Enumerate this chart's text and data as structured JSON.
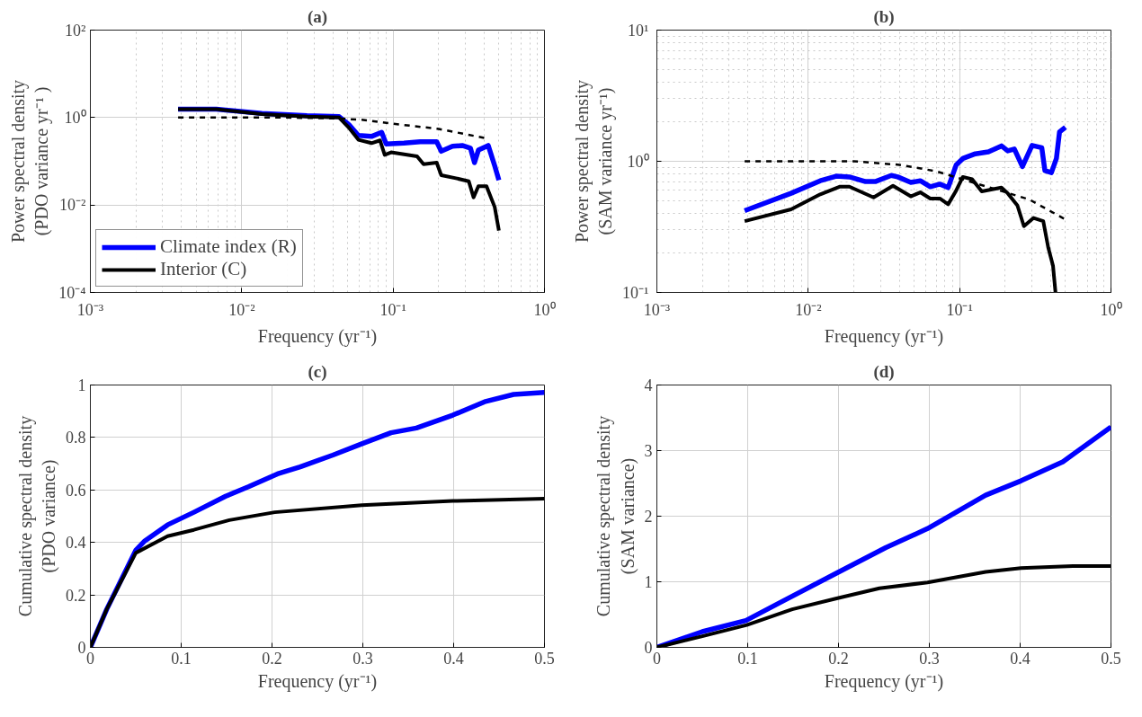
{
  "chart_data": [
    {
      "type": "line",
      "title": "(a)",
      "xlabel": "Frequency (yr⁻¹)",
      "ylabel": "Power spectral density\n(PDO variance yr⁻¹ )",
      "log": "xy",
      "grid": true,
      "legend": "bottom left",
      "xlim": [
        0.001,
        1
      ],
      "ylim": [
        0.0001,
        100
      ],
      "xticks": [
        {
          "value": 0.001,
          "label": "10⁻³"
        },
        {
          "value": 0.01,
          "label": "10⁻²"
        },
        {
          "value": 0.1,
          "label": "10⁻¹"
        },
        {
          "value": 1,
          "label": "10⁰"
        }
      ],
      "yticks": [
        {
          "value": 0.0001,
          "label": "10⁻⁴"
        },
        {
          "value": 0.01,
          "label": "10⁻²"
        },
        {
          "value": 1,
          "label": "10⁰"
        },
        {
          "value": 100,
          "label": "10²"
        }
      ],
      "series": [
        {
          "name": "Climate index (R)",
          "color": "#0000ff",
          "x": [
            0.0038,
            0.0068,
            0.0136,
            0.027,
            0.044,
            0.051,
            0.059,
            0.072,
            0.084,
            0.09,
            0.118,
            0.151,
            0.194,
            0.208,
            0.247,
            0.286,
            0.324,
            0.345,
            0.366,
            0.425,
            0.469,
            0.5
          ],
          "values": [
            1.55,
            1.55,
            1.24,
            1.1,
            1.05,
            0.69,
            0.39,
            0.37,
            0.46,
            0.25,
            0.26,
            0.28,
            0.28,
            0.17,
            0.22,
            0.23,
            0.2,
            0.093,
            0.18,
            0.23,
            0.079,
            0.037
          ]
        },
        {
          "name": "Interior (C)",
          "color": "#000000",
          "x": [
            0.0038,
            0.0068,
            0.0136,
            0.027,
            0.044,
            0.051,
            0.059,
            0.072,
            0.082,
            0.088,
            0.097,
            0.144,
            0.159,
            0.194,
            0.208,
            0.26,
            0.316,
            0.34,
            0.366,
            0.414,
            0.469,
            0.5
          ],
          "values": [
            1.55,
            1.55,
            1.2,
            1.05,
            1.0,
            0.59,
            0.31,
            0.26,
            0.3,
            0.14,
            0.16,
            0.13,
            0.086,
            0.093,
            0.048,
            0.041,
            0.035,
            0.015,
            0.027,
            0.027,
            0.009,
            0.0026
          ]
        },
        {
          "color": "#000000",
          "line_style": "dashed",
          "x": [
            0.0038,
            0.02,
            0.044,
            0.062,
            0.1,
            0.2,
            0.405
          ],
          "values": [
            1.0,
            1.0,
            0.95,
            0.89,
            0.72,
            0.55,
            0.34
          ]
        }
      ]
    },
    {
      "type": "line",
      "title": "(b)",
      "xlabel": "Frequency (yr⁻¹)",
      "ylabel": "Power spectral density\n(SAM variance yr⁻¹)",
      "log": "xy",
      "grid": true,
      "xlim": [
        0.001,
        1
      ],
      "ylim": [
        0.1,
        10
      ],
      "xticks": [
        {
          "value": 0.001,
          "label": "10⁻³"
        },
        {
          "value": 0.01,
          "label": "10⁻²"
        },
        {
          "value": 0.1,
          "label": "10⁻¹"
        },
        {
          "value": 1,
          "label": "10⁰"
        }
      ],
      "yticks": [
        {
          "value": 0.1,
          "label": "10⁻¹"
        },
        {
          "value": 1,
          "label": "10⁰"
        },
        {
          "value": 10,
          "label": "10¹"
        }
      ],
      "series": [
        {
          "color": "#0000ff",
          "x": [
            0.0038,
            0.0077,
            0.012,
            0.0153,
            0.0187,
            0.0239,
            0.0277,
            0.0354,
            0.039,
            0.0476,
            0.055,
            0.064,
            0.074,
            0.084,
            0.095,
            0.105,
            0.127,
            0.155,
            0.189,
            0.208,
            0.23,
            0.26,
            0.301,
            0.349,
            0.366,
            0.404,
            0.436,
            0.457,
            0.5
          ],
          "values": [
            0.42,
            0.57,
            0.71,
            0.77,
            0.76,
            0.7,
            0.7,
            0.78,
            0.76,
            0.69,
            0.71,
            0.64,
            0.67,
            0.63,
            0.94,
            1.05,
            1.14,
            1.18,
            1.31,
            1.2,
            1.24,
            0.91,
            1.32,
            1.27,
            0.85,
            0.82,
            1.05,
            1.67,
            1.82
          ]
        },
        {
          "color": "#000000",
          "x": [
            0.0038,
            0.0077,
            0.012,
            0.0161,
            0.0187,
            0.027,
            0.0363,
            0.0476,
            0.055,
            0.064,
            0.074,
            0.084,
            0.095,
            0.105,
            0.121,
            0.14,
            0.189,
            0.208,
            0.241,
            0.266,
            0.308,
            0.357,
            0.385,
            0.414,
            0.43
          ],
          "values": [
            0.35,
            0.43,
            0.56,
            0.64,
            0.64,
            0.53,
            0.65,
            0.54,
            0.58,
            0.52,
            0.52,
            0.47,
            0.6,
            0.76,
            0.73,
            0.59,
            0.63,
            0.57,
            0.46,
            0.32,
            0.37,
            0.35,
            0.22,
            0.16,
            0.1
          ]
        },
        {
          "color": "#000000",
          "line_style": "dashed",
          "x": [
            0.0038,
            0.02,
            0.04,
            0.07,
            0.29,
            0.5
          ],
          "values": [
            1.0,
            1.0,
            0.94,
            0.84,
            0.51,
            0.36
          ]
        }
      ]
    },
    {
      "type": "line",
      "title": "(c)",
      "xlabel": "Frequency (yr⁻¹)",
      "ylabel": "Cumulative spectral density\n(PDO variance)",
      "grid": true,
      "xlim": [
        0,
        0.5
      ],
      "ylim": [
        0,
        1
      ],
      "xticks": [
        0,
        0.1,
        0.2,
        0.3,
        0.4,
        0.5
      ],
      "yticks": [
        0,
        0.2,
        0.4,
        0.6,
        0.8,
        1
      ],
      "series": [
        {
          "color": "#0000ff",
          "x": [
            0,
            0.018,
            0.05,
            0.06,
            0.085,
            0.114,
            0.149,
            0.174,
            0.206,
            0.231,
            0.267,
            0.299,
            0.331,
            0.359,
            0.399,
            0.434,
            0.466,
            0.5
          ],
          "values": [
            0,
            0.145,
            0.37,
            0.406,
            0.467,
            0.515,
            0.576,
            0.612,
            0.661,
            0.688,
            0.733,
            0.776,
            0.818,
            0.836,
            0.885,
            0.936,
            0.964,
            0.972
          ]
        },
        {
          "color": "#000000",
          "x": [
            0,
            0.018,
            0.05,
            0.085,
            0.114,
            0.153,
            0.203,
            0.299,
            0.399,
            0.5
          ],
          "values": [
            0,
            0.145,
            0.36,
            0.424,
            0.448,
            0.485,
            0.515,
            0.542,
            0.558,
            0.567
          ]
        }
      ]
    },
    {
      "type": "line",
      "title": "(d)",
      "xlabel": "Frequency (yr⁻¹)",
      "ylabel": "Cumulative spectral density\n(SAM variance)",
      "grid": true,
      "xlim": [
        0,
        0.5
      ],
      "ylim": [
        0,
        4
      ],
      "xticks": [
        0,
        0.1,
        0.2,
        0.3,
        0.4,
        0.5
      ],
      "yticks": [
        0,
        1,
        2,
        3,
        4
      ],
      "series": [
        {
          "color": "#0000ff",
          "x": [
            0,
            0.05,
            0.098,
            0.138,
            0.199,
            0.252,
            0.298,
            0.362,
            0.401,
            0.447,
            0.5
          ],
          "values": [
            0,
            0.24,
            0.41,
            0.7,
            1.14,
            1.52,
            1.81,
            2.32,
            2.54,
            2.83,
            3.36
          ]
        },
        {
          "color": "#000000",
          "x": [
            0,
            0.05,
            0.099,
            0.149,
            0.199,
            0.245,
            0.298,
            0.362,
            0.401,
            0.458,
            0.5
          ],
          "values": [
            0,
            0.17,
            0.34,
            0.58,
            0.75,
            0.9,
            0.99,
            1.15,
            1.21,
            1.24,
            1.24
          ]
        }
      ]
    }
  ]
}
